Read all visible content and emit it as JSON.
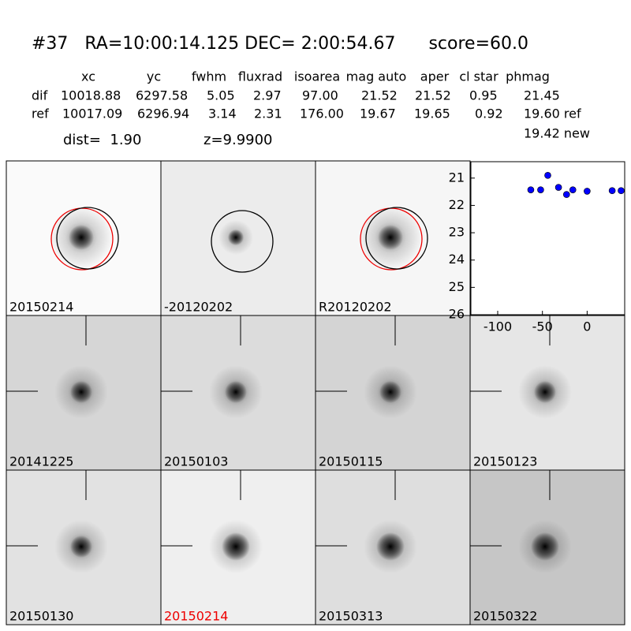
{
  "header": {
    "title": "#37   RA=10:00:14.125 DEC= 2:00:54.67      score=60.0",
    "dist": "dist=  1.90",
    "z": "z=9.9900"
  },
  "table": {
    "columns": [
      "xc",
      "yc",
      "fwhm",
      "fluxrad",
      "isoarea",
      "mag auto",
      "aper",
      "cl star",
      "phmag"
    ],
    "rows": [
      [
        "dif",
        "10018.88",
        "6297.58",
        "5.05",
        "2.97",
        "97.00",
        "21.52",
        "21.52",
        "0.95",
        "21.45"
      ],
      [
        "ref",
        "10017.09",
        "6296.94",
        "3.14",
        "2.31",
        "176.00",
        "19.67",
        "19.65",
        "0.92",
        "19.60 ref"
      ]
    ],
    "extra": "19.42 new"
  },
  "stamps": [
    "20150214",
    "-20120202",
    "R20120202",
    "20141225",
    "20150103",
    "20150115",
    "20150123",
    "20150130",
    "20150214",
    "20150313",
    "20150322"
  ],
  "chart_data": {
    "type": "scatter",
    "x": [
      -63,
      -52,
      -44,
      -32,
      -23,
      -16,
      0,
      28,
      38
    ],
    "values": [
      21.43,
      21.43,
      20.9,
      21.34,
      21.6,
      21.43,
      21.48,
      21.46,
      21.46
    ],
    "color": "#0000ff",
    "xlim": [
      -130,
      42
    ],
    "ylim": [
      26,
      20.4
    ],
    "xticks": [
      -100,
      -50,
      0
    ],
    "yticks": [
      21,
      22,
      23,
      24,
      25,
      26
    ]
  }
}
